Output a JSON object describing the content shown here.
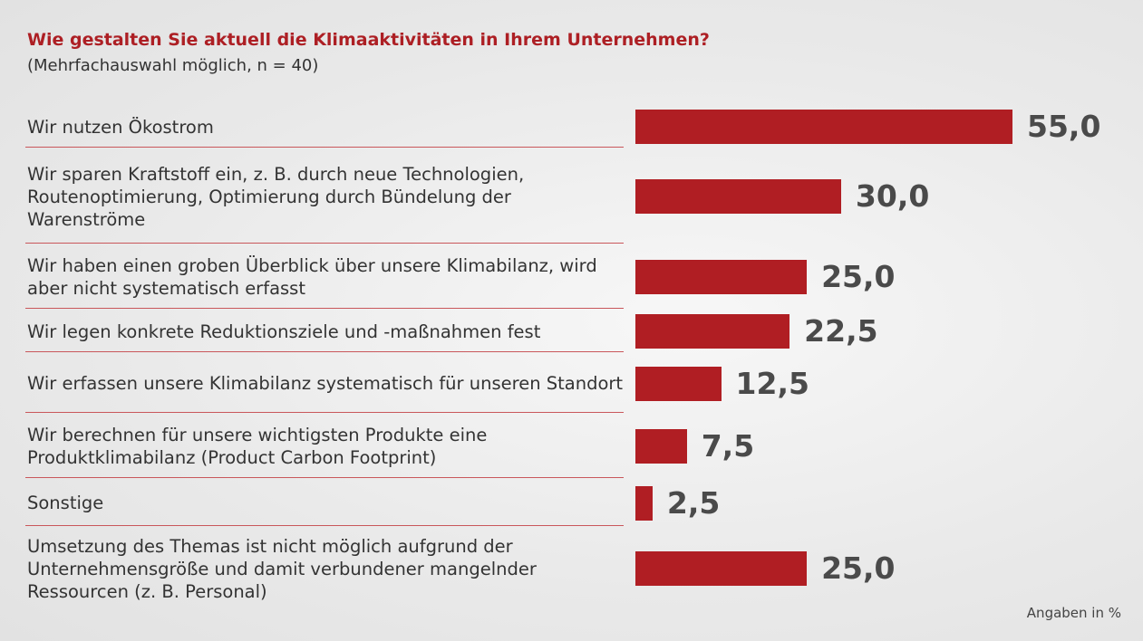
{
  "chart_data": {
    "type": "bar",
    "orientation": "horizontal",
    "title": "Wie gestalten Sie aktuell die Klimaaktivitäten in Ihrem Unternehmen?",
    "subtitle": "(Mehrfachauswahl möglich, n = 40)",
    "note": "Angaben in %",
    "categories": [
      "Wir nutzen Ökostrom",
      "Wir sparen Kraftstoff ein, z. B. durch neue Technologien, Routenoptimierung, Optimierung durch Bündelung der Warenströme",
      "Wir haben einen groben Überblick über unsere Klimabilanz, wird aber nicht systematisch erfasst",
      "Wir legen konkrete Reduktionsziele und -maßnahmen fest",
      "Wir erfassen unsere Klimabilanz systematisch für unseren Standort",
      "Wir berechnen für unsere wichtigsten Produkte eine Produktklimabilanz (Product Carbon Footprint)",
      "Sonstige",
      "Umsetzung des Themas ist nicht möglich aufgrund der Unternehmensgröße und damit verbundener mangelnder Ressourcen (z. B. Personal)"
    ],
    "values": [
      55,
      30,
      25,
      22.5,
      12.5,
      7.5,
      2.5,
      25
    ],
    "value_labels": [
      "55,0",
      "30,0",
      "25,0",
      "22,5",
      "12,5",
      "7,5",
      "2,5",
      "25,0"
    ],
    "color": "#b01e23"
  }
}
